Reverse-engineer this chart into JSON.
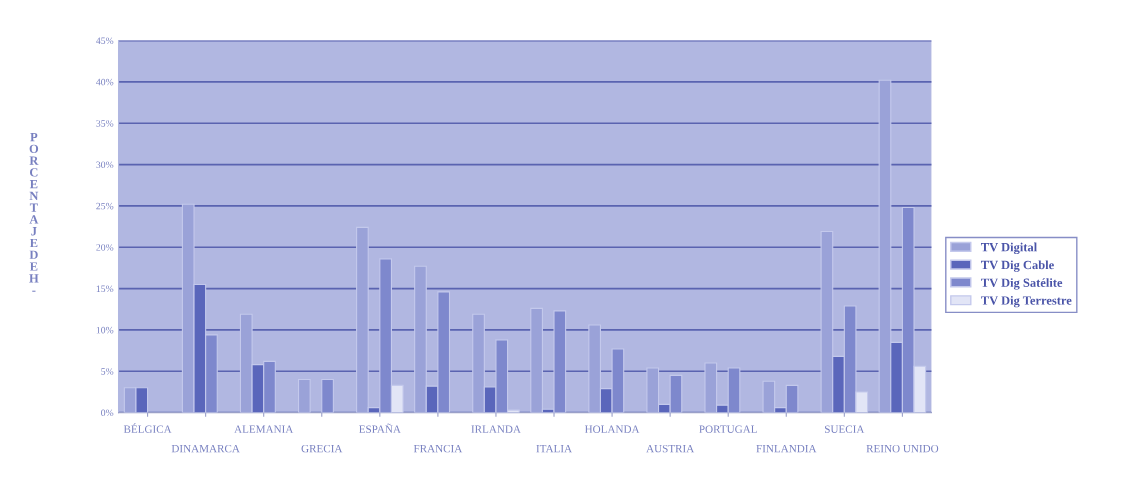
{
  "chart_data": {
    "type": "bar",
    "ylabel": "PORCENTAJEDEH-",
    "categories": [
      "BÉLGICA",
      "DINAMARCA",
      "ALEMANIA",
      "GRECIA",
      "ESPAÑA",
      "FRANCIA",
      "IRLANDA",
      "ITALIA",
      "HOLANDA",
      "AUSTRIA",
      "PORTUGAL",
      "FINLANDIA",
      "SUECIA",
      "REINO UNIDO"
    ],
    "series": [
      {
        "name": "TV Digital",
        "color": "#9aa2d8",
        "values": [
          3.0,
          25.2,
          11.9,
          4.0,
          22.4,
          17.7,
          11.9,
          12.6,
          10.6,
          5.4,
          6.0,
          3.8,
          21.9,
          40.2
        ]
      },
      {
        "name": "TV Dig Cable",
        "color": "#5a66bb",
        "values": [
          3.0,
          15.5,
          5.8,
          null,
          0.6,
          3.2,
          3.1,
          0.4,
          2.9,
          1.0,
          0.9,
          0.6,
          6.8,
          8.5
        ]
      },
      {
        "name": "TV Dig Satélite",
        "color": "#7e88cd",
        "values": [
          null,
          9.4,
          6.2,
          4.0,
          18.6,
          14.6,
          8.8,
          12.3,
          7.7,
          4.5,
          5.4,
          3.3,
          12.9,
          24.8
        ]
      },
      {
        "name": "TV Dig Terrestre",
        "color": "#e2e5f6",
        "values": [
          null,
          null,
          null,
          null,
          3.3,
          null,
          0.3,
          null,
          null,
          null,
          null,
          null,
          2.5,
          5.6
        ]
      }
    ],
    "ylim": [
      0,
      45
    ],
    "yticks": [
      {
        "value": 0,
        "label": "0%"
      },
      {
        "value": 5,
        "label": "5%"
      },
      {
        "value": 10,
        "label": "10%"
      },
      {
        "value": 15,
        "label": "15%"
      },
      {
        "value": 20,
        "label": "20%"
      },
      {
        "value": 25,
        "label": "25%"
      },
      {
        "value": 30,
        "label": "30%"
      },
      {
        "value": 35,
        "label": "35%"
      },
      {
        "value": 40,
        "label": "40%"
      },
      {
        "value": 45,
        "label": "45%"
      }
    ],
    "grid": "y",
    "legend": "right"
  }
}
